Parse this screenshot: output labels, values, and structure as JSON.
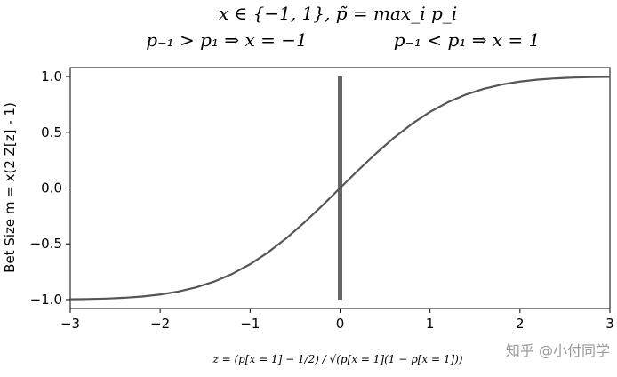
{
  "header": {
    "line1": "x ∈ {−1, 1}, p̃ = max_i p_i",
    "line2_left": "p₋₁ > p₁ ⇒ x = −1",
    "line2_right": "p₋₁ < p₁ ⇒ x = 1"
  },
  "watermark": "知乎 @小付同学",
  "chart_data": {
    "type": "line",
    "title": "",
    "xlabel": "z = (p[x = 1] − 1/2) / √(p[x = 1](1 − p[x = 1]))",
    "ylabel": "Bet Size m = x(2 Z[z] - 1)",
    "xlim": [
      -3,
      3
    ],
    "ylim": [
      -1.08,
      1.08
    ],
    "xticks": [
      -3,
      -2,
      -1,
      0,
      1,
      2,
      3
    ],
    "xtick_labels": [
      "−3",
      "−2",
      "−1",
      "0",
      "1",
      "2",
      "3"
    ],
    "yticks": [
      -1.0,
      -0.5,
      0.0,
      0.5,
      1.0
    ],
    "ytick_labels": [
      "−1.0",
      "−0.5",
      "0.0",
      "0.5",
      "1.0"
    ],
    "grid": false,
    "line_color": "#555555",
    "series": [
      {
        "x": [
          -3.0,
          -2.8,
          -2.6,
          -2.4,
          -2.2,
          -2.0,
          -1.8,
          -1.6,
          -1.4,
          -1.2,
          -1.0,
          -0.8,
          -0.6,
          -0.4,
          -0.2,
          0.0,
          0.2,
          0.4,
          0.6,
          0.8,
          1.0,
          1.2,
          1.4,
          1.6,
          1.8,
          2.0,
          2.2,
          2.4,
          2.6,
          2.8,
          3.0
        ],
        "values": [
          -0.9973,
          -0.9949,
          -0.9907,
          -0.9836,
          -0.9722,
          -0.9545,
          -0.9281,
          -0.8904,
          -0.8385,
          -0.7699,
          -0.6827,
          -0.5763,
          -0.4515,
          -0.3108,
          -0.1585,
          0.0,
          0.1585,
          0.3108,
          0.4515,
          0.5763,
          0.6827,
          0.7699,
          0.8385,
          0.8904,
          0.9281,
          0.9545,
          0.9722,
          0.9836,
          0.9907,
          0.9949,
          0.9973
        ]
      }
    ],
    "vertical_line": {
      "x": 0,
      "y_range": [
        -1.0,
        1.0
      ],
      "color": "#666666"
    }
  }
}
